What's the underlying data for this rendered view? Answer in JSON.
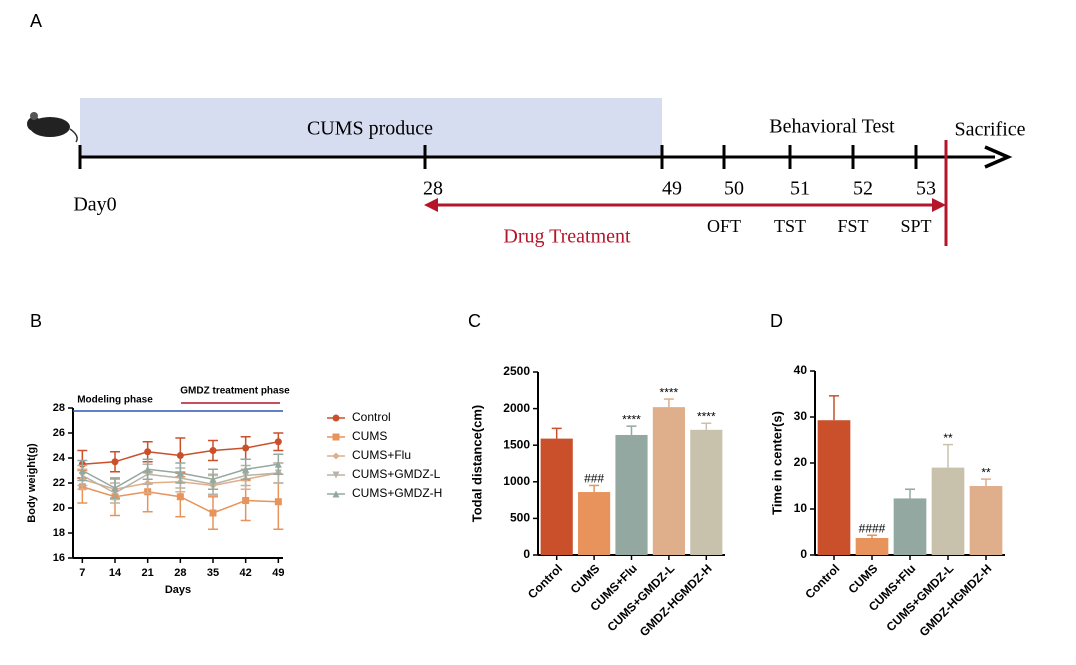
{
  "panel_labels": [
    "A",
    "B",
    "C",
    "D"
  ],
  "timeline": {
    "phase": "CUMS produce",
    "behavior": "Behavioral Test",
    "end": "Sacrifice",
    "start": "Day0",
    "days": [
      "28",
      "49",
      "50",
      "51",
      "52",
      "53"
    ],
    "tests": [
      "OFT",
      "TST",
      "FST",
      "SPT"
    ],
    "drug": "Drug Treatment"
  },
  "chart_data": [
    {
      "type": "line",
      "x_label": "Days",
      "y_label": "Body weight(g)",
      "annotations": [
        "Modeling phase",
        "GMDZ treatment phase"
      ],
      "x": [
        7,
        14,
        21,
        28,
        35,
        42,
        49
      ],
      "xlim": [
        5,
        50
      ],
      "xticks": [
        7,
        14,
        21,
        28,
        35,
        42,
        49
      ],
      "ylim": [
        16,
        28
      ],
      "yticks": [
        16,
        18,
        20,
        22,
        24,
        26,
        28
      ],
      "series": [
        {
          "name": "Control",
          "color": "#c9502a",
          "marker": "circle",
          "values": [
            23.5,
            23.7,
            24.5,
            24.2,
            24.6,
            24.8,
            25.3
          ],
          "errors": [
            1.1,
            0.8,
            0.8,
            1.4,
            0.8,
            0.9,
            0.7
          ]
        },
        {
          "name": "CUMS",
          "color": "#e8935c",
          "marker": "square",
          "values": [
            21.7,
            20.9,
            21.3,
            20.9,
            19.6,
            20.6,
            20.5
          ],
          "errors": [
            1.3,
            1.5,
            1.6,
            1.6,
            1.3,
            1.6,
            2.2
          ]
        },
        {
          "name": "CUMS+Flu",
          "color": "#dfae8a",
          "marker": "diamond",
          "values": [
            22.3,
            21.5,
            22.0,
            22.1,
            21.8,
            22.3,
            22.8
          ],
          "errors": [
            0.8,
            0.8,
            0.8,
            0.8,
            0.8,
            0.8,
            0.8
          ]
        },
        {
          "name": "CUMS+GMDZ-L",
          "color": "#b8b3a6",
          "marker": "tri-down",
          "values": [
            22.6,
            21.2,
            22.7,
            22.4,
            21.9,
            22.6,
            22.8
          ],
          "errors": [
            0.8,
            0.8,
            0.8,
            0.8,
            0.8,
            0.8,
            0.8
          ]
        },
        {
          "name": "CUMS+GMDZ-H",
          "color": "#93a8a0",
          "marker": "tri-up",
          "values": [
            23.0,
            21.6,
            23.1,
            22.8,
            22.3,
            23.1,
            23.5
          ],
          "errors": [
            0.8,
            0.8,
            0.8,
            0.8,
            0.8,
            0.8,
            0.8
          ]
        }
      ]
    },
    {
      "type": "bar",
      "y_label": "Todal distance(cm)",
      "categories": [
        "Control",
        "CUMS",
        "CUMS+Flu",
        "CUMS+GMDZ-L",
        "GMDZ-HGMDZ-H"
      ],
      "values": [
        1590,
        860,
        1640,
        2020,
        1710
      ],
      "errors": [
        140,
        90,
        120,
        110,
        90
      ],
      "significance": [
        null,
        "###",
        "****",
        "****",
        "****"
      ],
      "colors": [
        "#c9502a",
        "#e8935c",
        "#93a8a0",
        "#dfae8a",
        "#c8c2ad"
      ],
      "ylim": [
        0,
        2500
      ],
      "yticks": [
        0,
        500,
        1000,
        1500,
        2000,
        2500
      ]
    },
    {
      "type": "bar",
      "y_label": "Time in center(s)",
      "categories": [
        "Control",
        "CUMS",
        "CUMS+Flu",
        "CUMS+GMDZ-L",
        "GMDZ-HGMDZ-H"
      ],
      "values": [
        29.3,
        3.7,
        12.3,
        19,
        15
      ],
      "errors": [
        5.3,
        0.6,
        2,
        5,
        1.5
      ],
      "significance": [
        null,
        "####",
        null,
        "**",
        "**"
      ],
      "colors": [
        "#c9502a",
        "#e8935c",
        "#93a8a0",
        "#c8c2ad",
        "#dfae8a"
      ],
      "ylim": [
        0,
        40
      ],
      "yticks": [
        0,
        10,
        20,
        30,
        40
      ]
    }
  ]
}
